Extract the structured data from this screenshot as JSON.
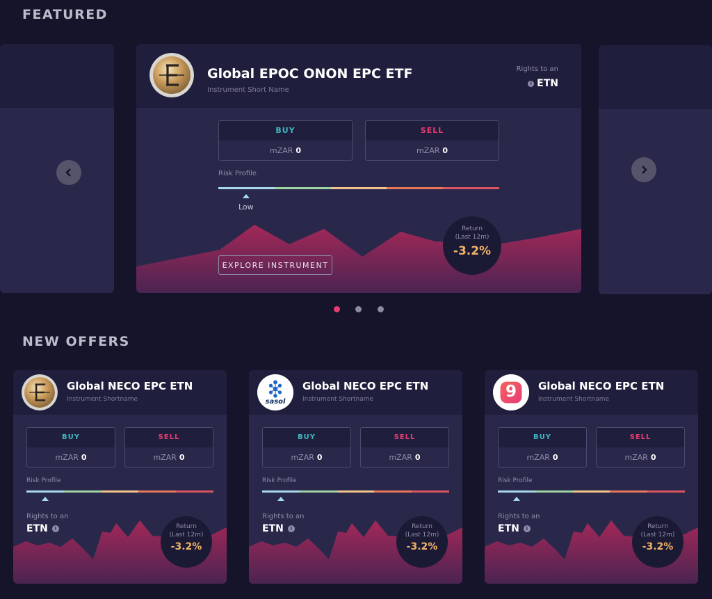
{
  "sections": {
    "featured": "FEATURED",
    "new_offers": "NEW OFFERS"
  },
  "featured": {
    "title": "Global EPOC ONON EPC ETF",
    "subtitle": "Instrument Short Name",
    "rights_label": "Rights to an",
    "rights_value": "ETN",
    "buy_label": "BUY",
    "sell_label": "SELL",
    "currency": "mZAR",
    "buy_value": "0",
    "sell_value": "0",
    "risk_label": "Risk Profile",
    "risk_level": "Low",
    "return_label_1": "Return",
    "return_label_2": "(Last 12m)",
    "return_value": "-3.2%",
    "explore_label": "EXPLORE INSTRUMENT",
    "logo_icon": "epc-coin-logo"
  },
  "carousel": {
    "prev_icon": "chevron-left-icon",
    "next_icon": "chevron-right-icon",
    "active_index": 0,
    "page_count": 3
  },
  "offers": [
    {
      "title": "Global NECO EPC ETN",
      "subtitle": "Instrument Shortname",
      "logo_icon": "epc-coin-logo",
      "buy_label": "BUY",
      "sell_label": "SELL",
      "currency": "mZAR",
      "buy_value": "0",
      "sell_value": "0",
      "risk_label": "Risk Profile",
      "rights_label": "Rights to an",
      "rights_value": "ETN",
      "return_label_1": "Return",
      "return_label_2": "(Last 12m)",
      "return_value": "-3.2%"
    },
    {
      "title": "Global NECO EPC ETN",
      "subtitle": "Instrument Shortname",
      "logo_icon": "sasol-logo",
      "logo_text": "sasol",
      "buy_label": "BUY",
      "sell_label": "SELL",
      "currency": "mZAR",
      "buy_value": "0",
      "sell_value": "0",
      "risk_label": "Risk Profile",
      "rights_label": "Rights to an",
      "rights_value": "ETN",
      "return_label_1": "Return",
      "return_label_2": "(Last 12m)",
      "return_value": "-3.2%"
    },
    {
      "title": "Global NECO EPC ETN",
      "subtitle": "Instrument Shortname",
      "logo_icon": "nine-logo",
      "logo_text": "9",
      "buy_label": "BUY",
      "sell_label": "SELL",
      "currency": "mZAR",
      "buy_value": "0",
      "sell_value": "0",
      "risk_label": "Risk Profile",
      "rights_label": "Rights to an",
      "rights_value": "ETN",
      "return_label_1": "Return",
      "return_label_2": "(Last 12m)",
      "return_value": "-3.2%"
    }
  ],
  "colors": {
    "accent": "#e63b70",
    "buy": "#3fb7bf",
    "sell": "#e63b70",
    "return": "#f2b366",
    "risk_scale": [
      "#a8d8ea",
      "#9fd3a6",
      "#f2c48d",
      "#e8775b",
      "#d95561"
    ]
  }
}
